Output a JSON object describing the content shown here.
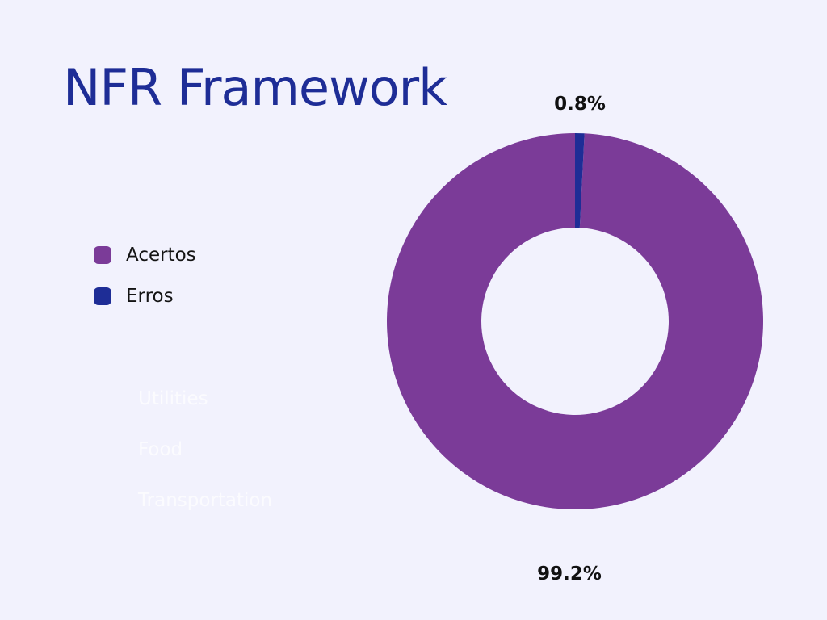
{
  "title": "NFR Framework",
  "legend": [
    {
      "label": "Acertos",
      "color": "#7b3b98"
    },
    {
      "label": "Erros",
      "color": "#1e2d96"
    }
  ],
  "faded_labels": [
    "Utilities",
    "Food",
    "Transportation"
  ],
  "chart_data": {
    "type": "pie",
    "variant": "donut",
    "categories": [
      "Acertos",
      "Erros"
    ],
    "values": [
      99.2,
      0.8
    ],
    "data_labels": [
      "99.2%",
      "0.8%"
    ],
    "colors": [
      "#7b3b98",
      "#1e2d96"
    ],
    "title": "NFR Framework",
    "legend_position": "left"
  }
}
